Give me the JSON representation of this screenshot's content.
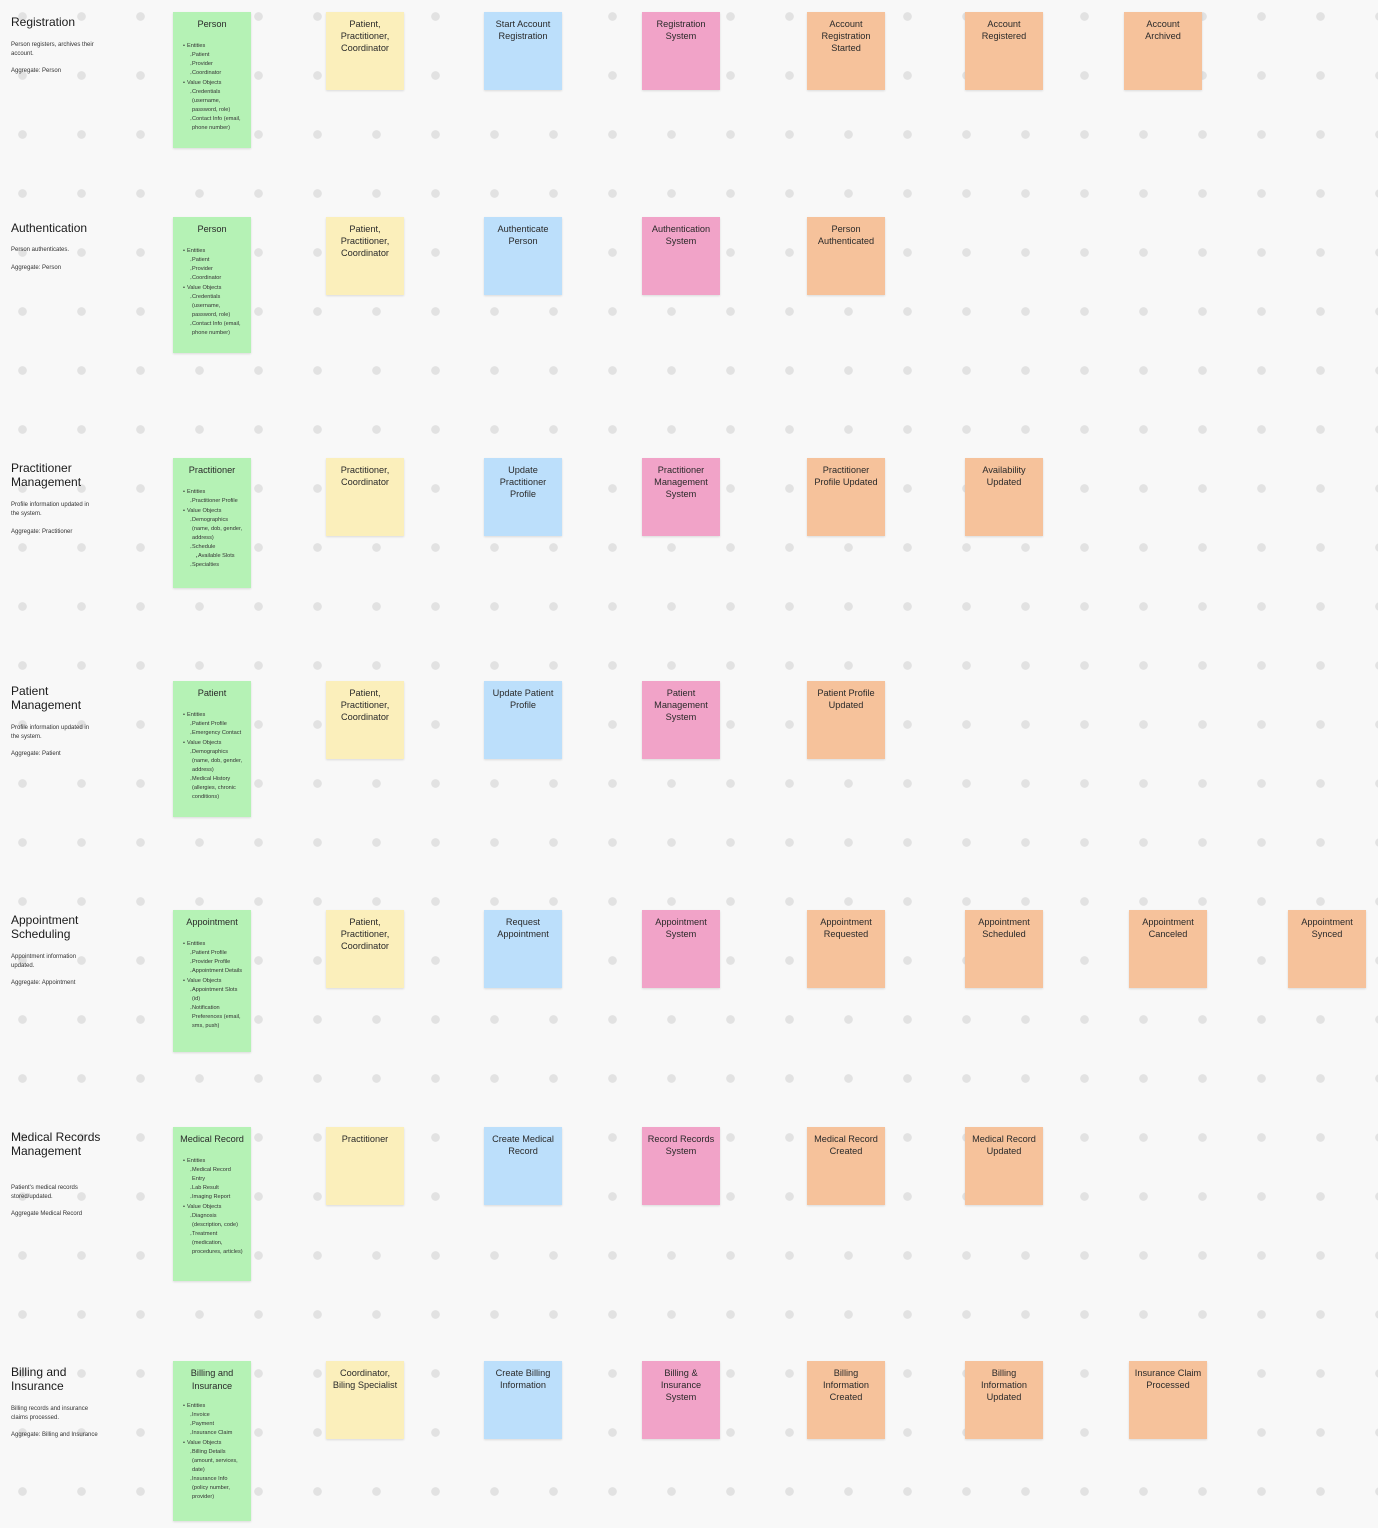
{
  "sections": [
    {
      "title": "Registration",
      "description": "Person registers, archives their account.",
      "aggregate_note": "Aggregate: Person",
      "aggregate": {
        "title": "Person",
        "items": [
          {
            "kind": "grp",
            "text": "Entities"
          },
          {
            "kind": "itm",
            "text": "Patient"
          },
          {
            "kind": "itm",
            "text": "Provider"
          },
          {
            "kind": "itm",
            "text": "Coordinator"
          },
          {
            "kind": "grp",
            "text": "Value Objects"
          },
          {
            "kind": "itm",
            "text": "Credentials (username, password, role)"
          },
          {
            "kind": "itm",
            "text": "Contact Info (email, phone number)"
          }
        ]
      },
      "actors": "Patient, Practitioner, Coordinator",
      "command": "Start Account Registration",
      "system": "Registration System",
      "events": [
        "Account Registration Started",
        "Account Registered",
        "Account Archived"
      ]
    },
    {
      "title": "Authentication",
      "description": "Person authenticates.",
      "aggregate_note": "Aggregate: Person",
      "aggregate": {
        "title": "Person",
        "items": [
          {
            "kind": "grp",
            "text": "Entities"
          },
          {
            "kind": "itm",
            "text": "Patient"
          },
          {
            "kind": "itm",
            "text": "Provider"
          },
          {
            "kind": "itm",
            "text": "Coordinator"
          },
          {
            "kind": "grp",
            "text": "Value Objects"
          },
          {
            "kind": "itm",
            "text": "Credentials (username, password, role)"
          },
          {
            "kind": "itm",
            "text": "Contact Info (email, phone number)"
          }
        ]
      },
      "actors": "Patient, Practitioner, Coordinator",
      "command": "Authenticate Person",
      "system": "Authentication System",
      "events": [
        "Person Authenticated"
      ]
    },
    {
      "title": "Practitioner Management",
      "description": "Profile information updated in the system.",
      "aggregate_note": "Aggregate: Practitioner",
      "aggregate": {
        "title": "Practitioner",
        "items": [
          {
            "kind": "grp",
            "text": "Entities"
          },
          {
            "kind": "itm",
            "text": "Practitioner Profile"
          },
          {
            "kind": "grp",
            "text": "Value Objects"
          },
          {
            "kind": "itm",
            "text": "Demographics (name, dob, gender, address)"
          },
          {
            "kind": "itm",
            "text": "Schedule"
          },
          {
            "kind": "sub",
            "text": "Available Slots"
          },
          {
            "kind": "itm",
            "text": "Specialties"
          }
        ]
      },
      "actors": "Practitioner, Coordinator",
      "command": "Update Practitioner Profile",
      "system": "Practitioner Management System",
      "events": [
        "Practitioner Profile Updated",
        "Availability Updated"
      ]
    },
    {
      "title": "Patient Management",
      "description": "Profile information updated in the system.",
      "aggregate_note": "Aggregate: Patient",
      "aggregate": {
        "title": "Patient",
        "items": [
          {
            "kind": "grp",
            "text": "Entities"
          },
          {
            "kind": "itm",
            "text": "Patient Profile"
          },
          {
            "kind": "itm",
            "text": "Emergency Contact"
          },
          {
            "kind": "grp",
            "text": "Value Objects"
          },
          {
            "kind": "itm",
            "text": "Demographics (name, dob, gender, address)"
          },
          {
            "kind": "itm",
            "text": "Medical History (allergies, chronic conditions)"
          }
        ]
      },
      "actors": "Patient, Practitioner, Coordinator",
      "command": "Update Patient Profile",
      "system": "Patient Management System",
      "events": [
        "Patient Profile Updated"
      ]
    },
    {
      "title": "Appointment Scheduling",
      "description": "Appointment information updated.",
      "aggregate_note": "Aggregate: Appointment",
      "aggregate": {
        "title": "Appointment",
        "items": [
          {
            "kind": "grp",
            "text": "Entities"
          },
          {
            "kind": "itm",
            "text": "Patient Profile"
          },
          {
            "kind": "itm",
            "text": "Provider Profile"
          },
          {
            "kind": "itm",
            "text": "Appointment Details"
          },
          {
            "kind": "grp",
            "text": "Value Objects"
          },
          {
            "kind": "itm",
            "text": "Appointment Slots (id)"
          },
          {
            "kind": "itm",
            "text": "Notification Preferences (email, sms, push)"
          }
        ]
      },
      "actors": "Patient, Practitioner, Coordinator",
      "command": "Request Appointment",
      "system": "Appointment System",
      "events": [
        "Appointment Requested",
        "Appointment Scheduled",
        "Appointment Canceled",
        "Appointment Synced"
      ]
    },
    {
      "title": "Medical Records Management",
      "description": "Patient's medical records stored/updated.",
      "aggregate_note": "Aggregate Medical Record",
      "aggregate": {
        "title": "Medical Record",
        "items": [
          {
            "kind": "grp",
            "text": "Entities"
          },
          {
            "kind": "itm",
            "text": "Medical Record Entry"
          },
          {
            "kind": "itm",
            "text": "Lab Result"
          },
          {
            "kind": "itm",
            "text": "Imaging Report"
          },
          {
            "kind": "grp",
            "text": "Value Objects"
          },
          {
            "kind": "itm",
            "text": "Diagnosis (description, code)"
          },
          {
            "kind": "itm",
            "text": "Treatment (medication, procedures, articles)"
          }
        ]
      },
      "actors": "Practitioner",
      "command": "Create Medical Record",
      "system": "Record Records System",
      "events": [
        "Medical Record Created",
        "Medical Record Updated"
      ]
    },
    {
      "title": "Billing and Insurance",
      "description": "Billing records and insurance claims processed.",
      "aggregate_note": "Aggregate: Billing and Insurance",
      "aggregate": {
        "title": "Billing and Insurance",
        "items": [
          {
            "kind": "grp",
            "text": "Entities"
          },
          {
            "kind": "itm",
            "text": "Invoice"
          },
          {
            "kind": "itm",
            "text": "Payment"
          },
          {
            "kind": "itm",
            "text": "Insurance Claim"
          },
          {
            "kind": "grp",
            "text": "Value Objects"
          },
          {
            "kind": "itm",
            "text": "Billing Details (amount, services, date)"
          },
          {
            "kind": "itm",
            "text": "Insurance Info (policy number, provider)"
          }
        ]
      },
      "actors": "Coordinator, Biling Specialist",
      "command": "Create Billing Information",
      "system": "Billing & Insurance System",
      "events": [
        "Billing Information Created",
        "Billing Information Updated",
        "Insurance Claim Processed"
      ]
    }
  ],
  "legend_colors": {
    "aggregate": "#b5f2b5",
    "actor": "#fbefbb",
    "command": "#bcdffb",
    "system": "#f1a3c8",
    "event": "#f6c29b"
  }
}
